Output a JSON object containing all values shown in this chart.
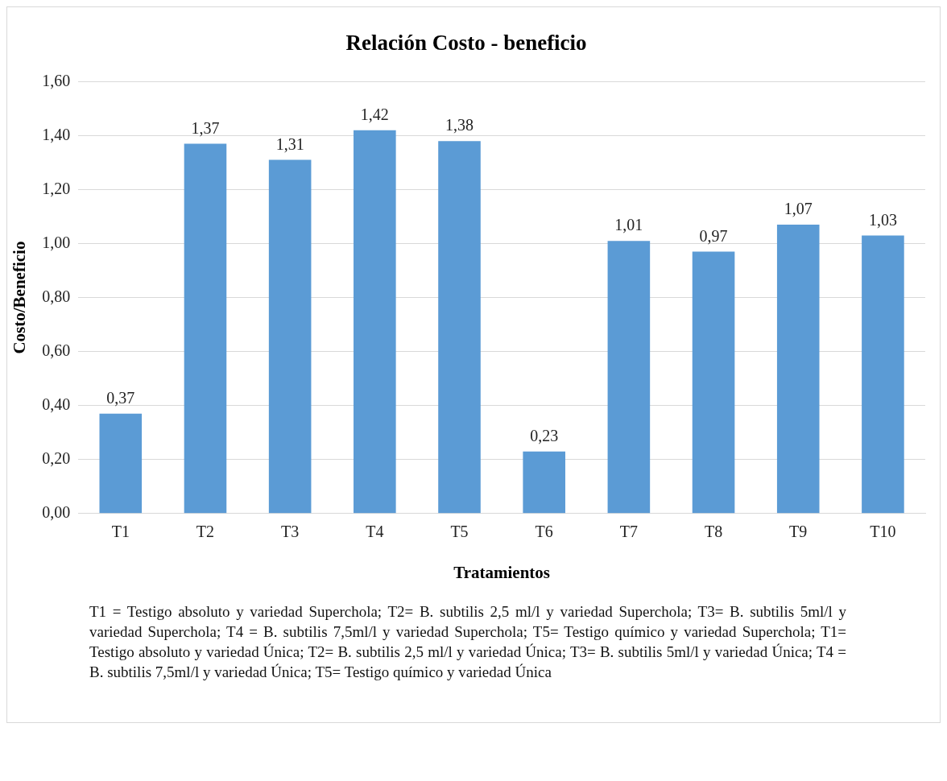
{
  "chart_data": {
    "type": "bar",
    "title": "Relación Costo - beneficio",
    "xlabel": "Tratamientos",
    "ylabel": "Costo/Beneficio",
    "categories": [
      "T1",
      "T2",
      "T3",
      "T4",
      "T5",
      "T6",
      "T7",
      "T8",
      "T9",
      "T10"
    ],
    "values": [
      0.37,
      1.37,
      1.31,
      1.42,
      1.38,
      0.23,
      1.01,
      0.97,
      1.07,
      1.03
    ],
    "color": "#5b9bd5",
    "ylim": [
      0,
      1.6
    ],
    "yticks": [
      {
        "value": 0,
        "label": "0,00"
      },
      {
        "value": 0.2,
        "label": "0,20"
      },
      {
        "value": 0.4,
        "label": "0,40"
      },
      {
        "value": 0.6,
        "label": "0,60"
      },
      {
        "value": 0.8,
        "label": "0,80"
      },
      {
        "value": 1,
        "label": "1,00"
      },
      {
        "value": 1.2,
        "label": "1,20"
      },
      {
        "value": 1.4,
        "label": "1,40"
      },
      {
        "value": 1.6,
        "label": "1,60"
      }
    ],
    "grid": "y",
    "legend": false,
    "value_labels": [
      "0,37",
      "1,37",
      "1,31",
      "1,42",
      "1,38",
      "0,23",
      "1,01",
      "0,97",
      "1,07",
      "1,03"
    ],
    "annotations": [
      "T1 = Testigo absoluto y variedad Superchola; T2= B. subtilis 2,5 ml/l y variedad Superchola; T3= B. subtilis 5ml/l y variedad Superchola; T4 = B. subtilis 7,5ml/l y variedad Superchola; T5= Testigo químico y variedad Superchola; T1= Testigo absoluto y variedad Única; T2= B. subtilis 2,5 ml/l y variedad Única; T3= B. subtilis 5ml/l y variedad Única; T4 = B. subtilis 7,5ml/l y variedad Única; T5= Testigo químico y variedad Única"
    ]
  }
}
